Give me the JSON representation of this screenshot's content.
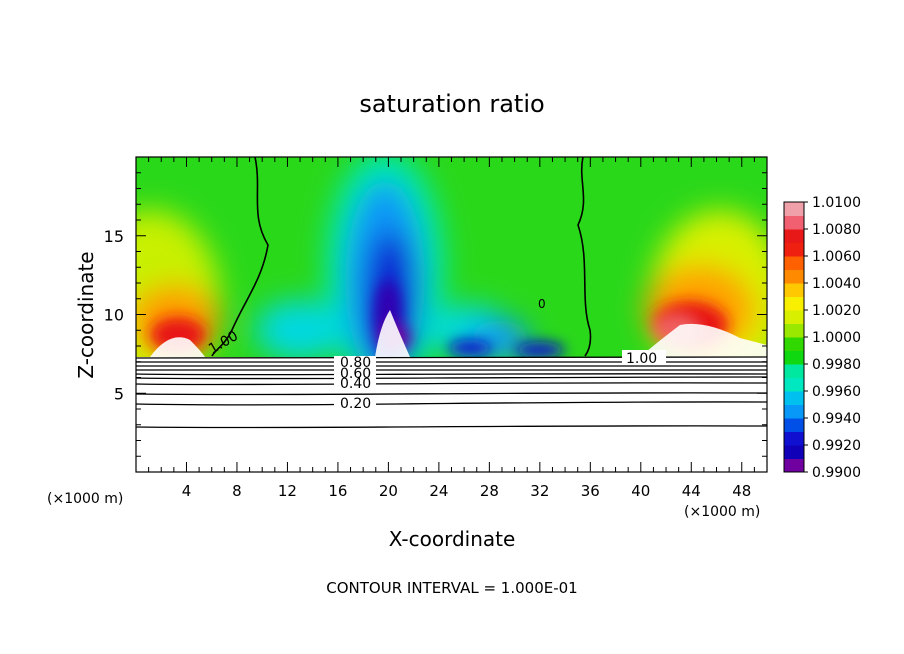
{
  "chart_data": {
    "type": "heatmap",
    "title": "saturation ratio",
    "xlabel": "X-coordinate",
    "ylabel": "Z-coordinate",
    "x_unit_left": "(×1000 m)",
    "x_unit_right": "(×1000 m)",
    "xlim": [
      0,
      50
    ],
    "ylim": [
      0,
      20
    ],
    "x_ticks": [
      4,
      8,
      12,
      16,
      20,
      24,
      28,
      32,
      36,
      40,
      44,
      48
    ],
    "y_ticks": [
      5,
      10,
      15
    ],
    "footer": "CONTOUR INTERVAL = 1.000E-01",
    "colorbar": {
      "min": 0.99,
      "max": 1.01,
      "labels": [
        "1.0100",
        "1.0080",
        "1.0060",
        "1.0040",
        "1.0020",
        "1.0000",
        "0.9980",
        "0.9960",
        "0.9940",
        "0.9920",
        "0.9900"
      ],
      "colors": [
        "#f0a0a8",
        "#e81818",
        "#ff8a00",
        "#f8f000",
        "#10d810",
        "#00e8a0",
        "#0898f8",
        "#1010d0",
        "#7000a0"
      ]
    },
    "contour_labels": [
      {
        "text": "1.00",
        "x": 7.5,
        "z": 8.0
      },
      {
        "text": "1.00",
        "x": 40.0,
        "z": 7.3
      },
      {
        "text": "0",
        "x": 32.0,
        "z": 10.6
      },
      {
        "text": "0.80",
        "x": 17.5,
        "z": 7.3
      },
      {
        "text": "0.60",
        "x": 17.5,
        "z": 6.6
      },
      {
        "text": "0.40",
        "x": 17.5,
        "z": 5.8
      },
      {
        "text": "0.20",
        "x": 17.5,
        "z": 4.4
      }
    ],
    "contour_levels_z": [
      7.2,
      7.0,
      6.8,
      6.6,
      6.4,
      6.2,
      5.8,
      5.2,
      4.5,
      3.0
    ]
  }
}
